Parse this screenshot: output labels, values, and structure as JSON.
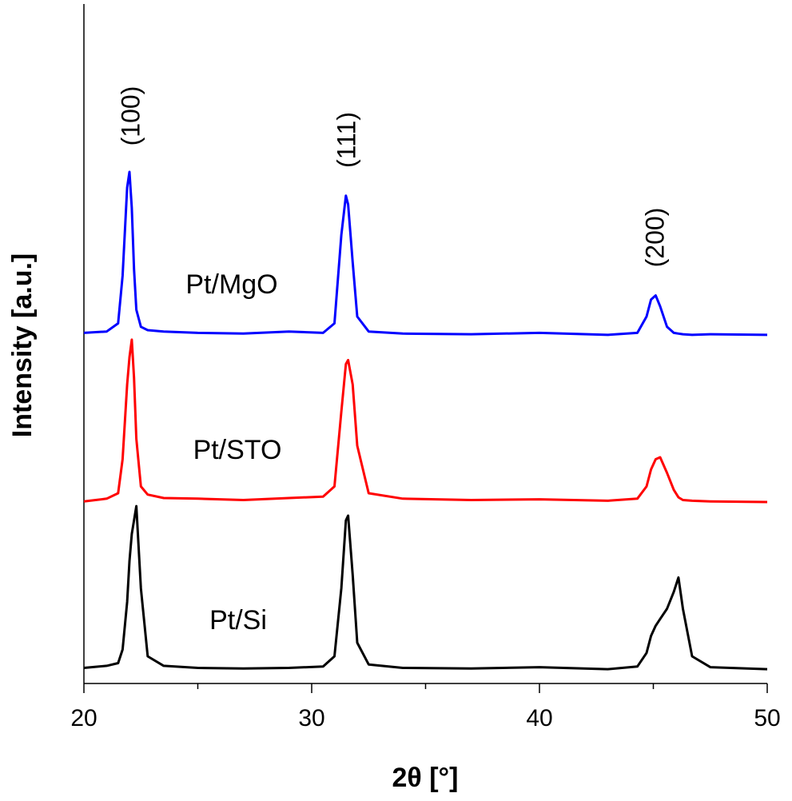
{
  "chart_data": {
    "type": "line",
    "xlabel": "2θ [°]",
    "ylabel": "Intensity [a.u.]",
    "annotations": [
      "(100)",
      "(111)",
      "(200)"
    ],
    "x": [
      20,
      21,
      21.5,
      21.7,
      21.9,
      22.0,
      22.1,
      22.2,
      22.3,
      22.5,
      22.8,
      23.5,
      25,
      27,
      29,
      30.5,
      31.0,
      31.3,
      31.5,
      31.6,
      31.8,
      32.0,
      32.5,
      34,
      37,
      40,
      43,
      44.3,
      44.7,
      44.9,
      45.1,
      45.3,
      45.6,
      45.9,
      46.1,
      46.3,
      46.7,
      47.5,
      50
    ],
    "series": [
      {
        "name": "Pt/MgO",
        "color": "#0000ff",
        "values": [
          51.6,
          51.8,
          53,
          60,
          73,
          75.3,
          70,
          61,
          55,
          52.5,
          52,
          51.8,
          51.6,
          51.5,
          51.8,
          51.6,
          53,
          66,
          71.8,
          70.5,
          62,
          54,
          51.8,
          51.5,
          51.4,
          51.6,
          51.3,
          51.6,
          54,
          56.5,
          57.1,
          55.5,
          52.5,
          51.6,
          51.5,
          51.4,
          51.3,
          51.4,
          51.3
        ]
      },
      {
        "name": "Pt/STO",
        "color": "#ff0000",
        "values": [
          26.8,
          27.2,
          28,
          33,
          44,
          48,
          50.6,
          45,
          36,
          29,
          27.8,
          27.3,
          27.2,
          27.0,
          27.3,
          27.5,
          29,
          40,
          47,
          47.6,
          44,
          35,
          28,
          27.2,
          27.0,
          27.1,
          26.9,
          27.2,
          29,
          31.5,
          33,
          33.3,
          31,
          28.5,
          27.4,
          27.0,
          26.9,
          26.8,
          26.7
        ]
      },
      {
        "name": "Pt/Si",
        "color": "#000000",
        "values": [
          2.3,
          2.6,
          3,
          5,
          12,
          18,
          22,
          24,
          26.1,
          14,
          4,
          2.6,
          2.3,
          2.2,
          2.3,
          2.5,
          4,
          14,
          24,
          24.7,
          16,
          6,
          2.8,
          2.3,
          2.2,
          2.4,
          2.1,
          2.5,
          4.5,
          7,
          8.5,
          9.5,
          11,
          13.5,
          15.6,
          11,
          4,
          2.4,
          2.1
        ]
      }
    ],
    "xlim": [
      20,
      50
    ],
    "xticks": [
      20,
      30,
      40,
      50
    ],
    "ylim": [
      0,
      100
    ],
    "grid": false
  }
}
